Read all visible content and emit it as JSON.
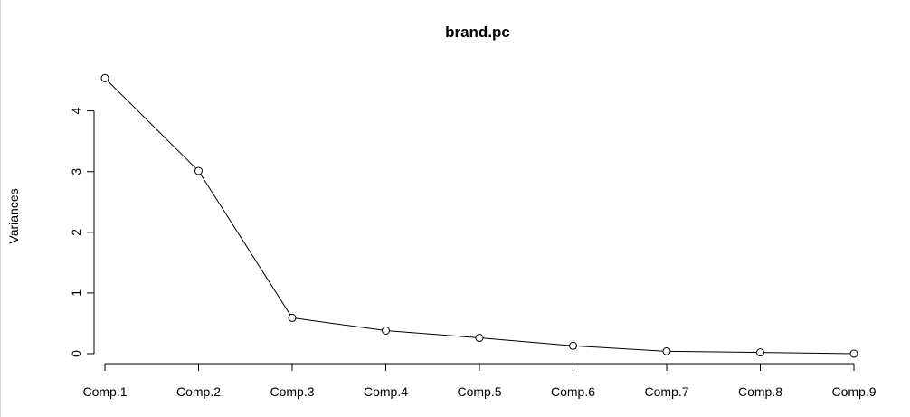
{
  "chart_data": {
    "type": "line",
    "title": "brand.pc",
    "xlabel": "",
    "ylabel": "Variances",
    "categories": [
      "Comp.1",
      "Comp.2",
      "Comp.3",
      "Comp.4",
      "Comp.5",
      "Comp.6",
      "Comp.7",
      "Comp.8",
      "Comp.9"
    ],
    "series": [
      {
        "values": [
          4.54,
          3.01,
          0.59,
          0.38,
          0.26,
          0.13,
          0.04,
          0.02,
          0.0
        ]
      }
    ],
    "yticks": [
      0,
      1,
      2,
      3,
      4
    ],
    "ylim": [
      0,
      4.6
    ],
    "grid": false,
    "markers": "open-circle"
  }
}
